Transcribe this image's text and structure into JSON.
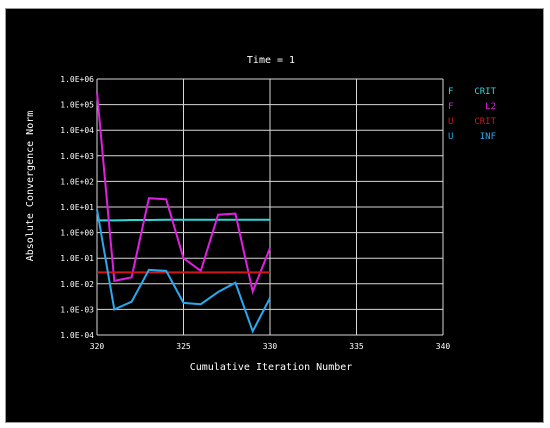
{
  "chart_data": {
    "type": "line",
    "title": "Time = 1",
    "xlabel": "Cumulative Iteration Number",
    "ylabel": "Absolute Convergence Norm",
    "xlim": [
      320,
      340
    ],
    "x_ticks": [
      "320",
      "325",
      "330",
      "335",
      "340"
    ],
    "y_scale": "log",
    "ylim": [
      0.0001,
      1000000
    ],
    "y_ticks": [
      "1.0E-04",
      "1.0E-03",
      "1.0E-02",
      "1.0E-01",
      "1.0E+00",
      "1.0E+01",
      "1.0E+02",
      "1.0E+03",
      "1.0E+04",
      "1.0E+05",
      "1.0E+06"
    ],
    "grid": true,
    "legend_position": "right",
    "series": [
      {
        "name": "F CRIT",
        "legend_left": "F",
        "legend_right": "CRIT",
        "color": "#33d6d6",
        "x": [
          320,
          321,
          322,
          323,
          324,
          325,
          326,
          327,
          328,
          329,
          330
        ],
        "y": [
          3.0,
          3.0,
          3.1,
          3.1,
          3.2,
          3.2,
          3.2,
          3.2,
          3.2,
          3.2,
          3.2
        ]
      },
      {
        "name": "F L2",
        "legend_left": "F",
        "legend_right": "L2",
        "color": "#e020e0",
        "x": [
          320,
          321,
          322,
          323,
          324,
          325,
          326,
          327,
          328,
          329,
          330
        ],
        "y": [
          300000,
          0.013,
          0.018,
          22,
          20,
          0.1,
          0.032,
          5,
          5.5,
          0.005,
          0.25
        ]
      },
      {
        "name": "U CRIT",
        "legend_left": "U",
        "legend_right": "CRIT",
        "color": "#d01818",
        "x": [
          320,
          330
        ],
        "y": [
          0.028,
          0.028
        ]
      },
      {
        "name": "U INF",
        "legend_left": "U",
        "legend_right": "INF",
        "color": "#2aa8f0",
        "x": [
          320,
          321,
          322,
          323,
          324,
          325,
          326,
          327,
          328,
          329,
          330
        ],
        "y": [
          8,
          0.001,
          0.002,
          0.035,
          0.032,
          0.0018,
          0.0016,
          0.0048,
          0.011,
          0.00014,
          0.0028
        ]
      }
    ]
  }
}
